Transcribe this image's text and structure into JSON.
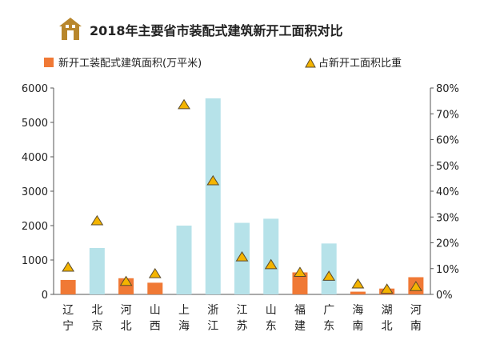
{
  "chart_data": {
    "type": "bar",
    "title": "2018年主要省市装配式建筑新开工面积对比",
    "categories": [
      "辽宁",
      "北京",
      "河北",
      "山西",
      "上海",
      "浙江",
      "江苏",
      "山东",
      "福建",
      "广东",
      "海南",
      "湖北",
      "河南"
    ],
    "series": [
      {
        "name": "新开工装配式建筑面积(万平米)",
        "axis": "left",
        "values": [
          420,
          1350,
          470,
          340,
          2000,
          5700,
          2080,
          2200,
          640,
          1480,
          80,
          170,
          500
        ],
        "orange_categories": [
          "辽宁",
          "河北",
          "山西",
          "福建",
          "海南",
          "湖北",
          "河南"
        ]
      },
      {
        "name": "占新开工面积比重",
        "axis": "right",
        "marker": "triangle",
        "values": [
          10.5,
          28.5,
          5,
          8,
          73.5,
          44,
          14.5,
          11.5,
          8.5,
          7,
          4,
          2,
          3
        ]
      }
    ],
    "ylim_left": [
      0,
      6000
    ],
    "yticks_left": [
      "0",
      "1000",
      "2000",
      "3000",
      "4000",
      "5000",
      "6000"
    ],
    "ylim_right": [
      0,
      80
    ],
    "yticks_right": [
      "0%",
      "10%",
      "20%",
      "30%",
      "40%",
      "50%",
      "60%",
      "70%",
      "80%"
    ],
    "legend_placement": "top",
    "colors": {
      "orange": "#F07935",
      "light_blue": "#B6E2E9",
      "triangle_fill": "#F4B400",
      "triangle_stroke": "#5A4A2A",
      "axis": "#555555",
      "icon": "#B8862B"
    }
  }
}
